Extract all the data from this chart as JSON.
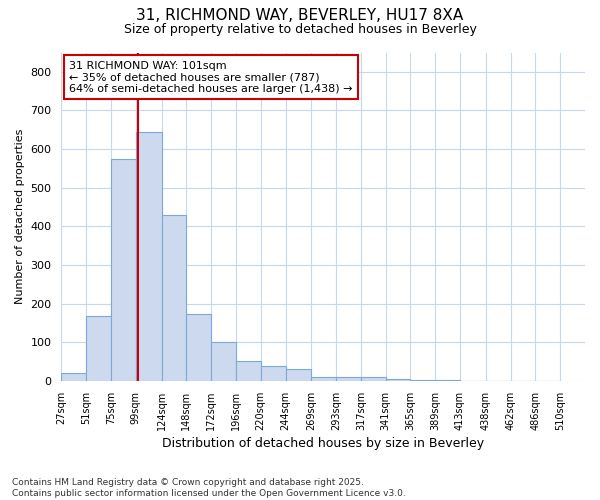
{
  "title_line1": "31, RICHMOND WAY, BEVERLEY, HU17 8XA",
  "title_line2": "Size of property relative to detached houses in Beverley",
  "xlabel": "Distribution of detached houses by size in Beverley",
  "ylabel": "Number of detached properties",
  "bar_color": "#ccd9ee",
  "bar_edge_color": "#7da8d8",
  "bar_left_edges": [
    27,
    51,
    75,
    99,
    124,
    148,
    172,
    196,
    220,
    244,
    269,
    293,
    317,
    341,
    365,
    389,
    413,
    438,
    462,
    486
  ],
  "bar_widths": [
    24,
    24,
    24,
    25,
    24,
    24,
    24,
    24,
    24,
    25,
    24,
    24,
    24,
    24,
    24,
    24,
    25,
    24,
    24,
    24
  ],
  "bar_heights": [
    20,
    168,
    575,
    643,
    430,
    172,
    102,
    52,
    40,
    32,
    10,
    10,
    10,
    5,
    3,
    2,
    1,
    1,
    0.5,
    0.5
  ],
  "tick_labels": [
    "27sqm",
    "51sqm",
    "75sqm",
    "99sqm",
    "124sqm",
    "148sqm",
    "172sqm",
    "196sqm",
    "220sqm",
    "244sqm",
    "269sqm",
    "293sqm",
    "317sqm",
    "341sqm",
    "365sqm",
    "389sqm",
    "413sqm",
    "438sqm",
    "462sqm",
    "486sqm",
    "510sqm"
  ],
  "tick_positions": [
    27,
    51,
    75,
    99,
    124,
    148,
    172,
    196,
    220,
    244,
    269,
    293,
    317,
    341,
    365,
    389,
    413,
    438,
    462,
    486,
    510
  ],
  "ylim": [
    0,
    850
  ],
  "yticks": [
    0,
    100,
    200,
    300,
    400,
    500,
    600,
    700,
    800
  ],
  "property_line_x": 101,
  "property_line_color": "#cc0000",
  "annotation_text": "31 RICHMOND WAY: 101sqm\n← 35% of detached houses are smaller (787)\n64% of semi-detached houses are larger (1,438) →",
  "annotation_box_color": "#cc0000",
  "bg_color": "#ffffff",
  "plot_bg_color": "#ffffff",
  "grid_color": "#c8d8ec",
  "footnote": "Contains HM Land Registry data © Crown copyright and database right 2025.\nContains public sector information licensed under the Open Government Licence v3.0."
}
